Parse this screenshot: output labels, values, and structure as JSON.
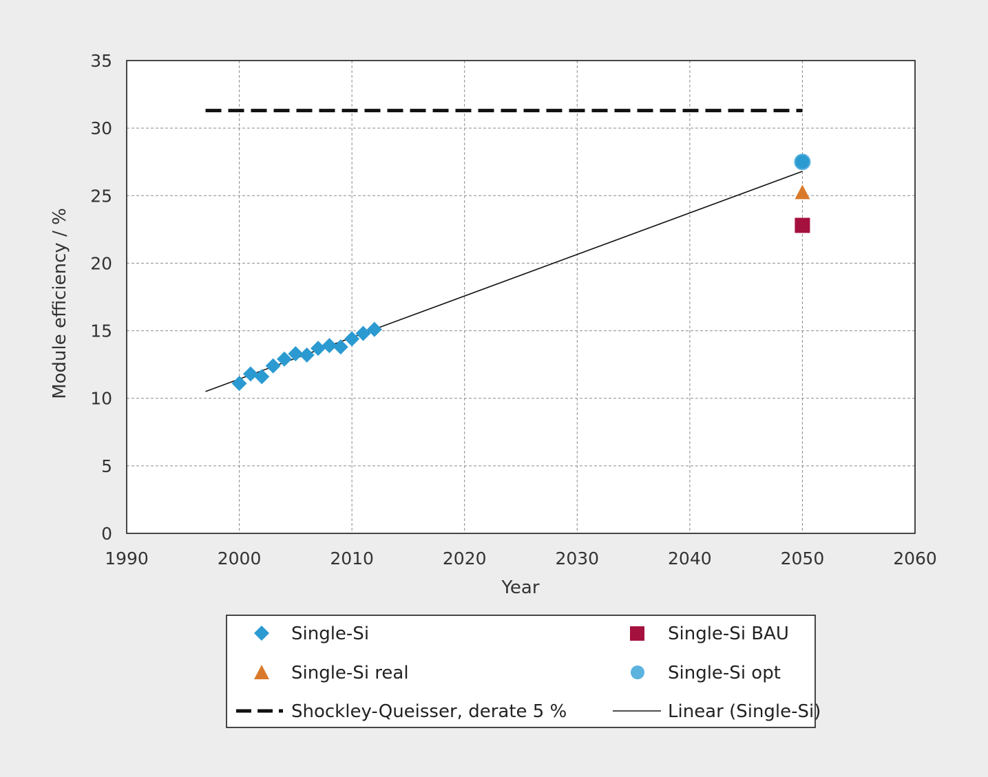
{
  "chart_data": {
    "type": "scatter",
    "xlabel": "Year",
    "ylabel": "Module efficiency / %",
    "xlim": [
      1990,
      2060
    ],
    "ylim": [
      0,
      35
    ],
    "xticks": [
      1990,
      2000,
      2010,
      2020,
      2030,
      2040,
      2050,
      2060
    ],
    "yticks": [
      0,
      5,
      10,
      15,
      20,
      25,
      30,
      35
    ],
    "grid": true,
    "legend_position": "bottom",
    "series": [
      {
        "name": "Single-Si",
        "marker": "diamond",
        "color": "#2b9ad1",
        "x": [
          2000,
          2001,
          2002,
          2003,
          2004,
          2005,
          2006,
          2007,
          2008,
          2009,
          2010,
          2011,
          2012
        ],
        "y": [
          11.1,
          11.8,
          11.6,
          12.4,
          12.9,
          13.3,
          13.2,
          13.7,
          13.9,
          13.8,
          14.4,
          14.8,
          15.1
        ]
      },
      {
        "name": "Single-Si BAU",
        "marker": "square",
        "color": "#a5113f",
        "x": [
          2050
        ],
        "y": [
          22.8
        ]
      },
      {
        "name": "Single-Si real",
        "marker": "triangle",
        "color": "#d97a2b",
        "x": [
          2050
        ],
        "y": [
          25.2
        ]
      },
      {
        "name": "Single-Si opt",
        "marker": "circle",
        "color": "#2b9ad1",
        "x": [
          2050
        ],
        "y": [
          27.5
        ]
      },
      {
        "name": "Shockley-Queisser, derate 5 %",
        "line": "dashed",
        "color": "#111111",
        "x": [
          1997,
          2050
        ],
        "y": [
          31.3,
          31.3
        ]
      },
      {
        "name": "Linear (Single-Si)",
        "line": "solid",
        "color": "#111111",
        "x": [
          1997,
          2050
        ],
        "y": [
          10.5,
          26.8
        ]
      }
    ],
    "legend": [
      "Single-Si",
      "Single-Si BAU",
      "Single-Si real",
      "Single-Si opt",
      "Shockley-Queisser, derate 5 %",
      "Linear (Single-Si)"
    ]
  }
}
